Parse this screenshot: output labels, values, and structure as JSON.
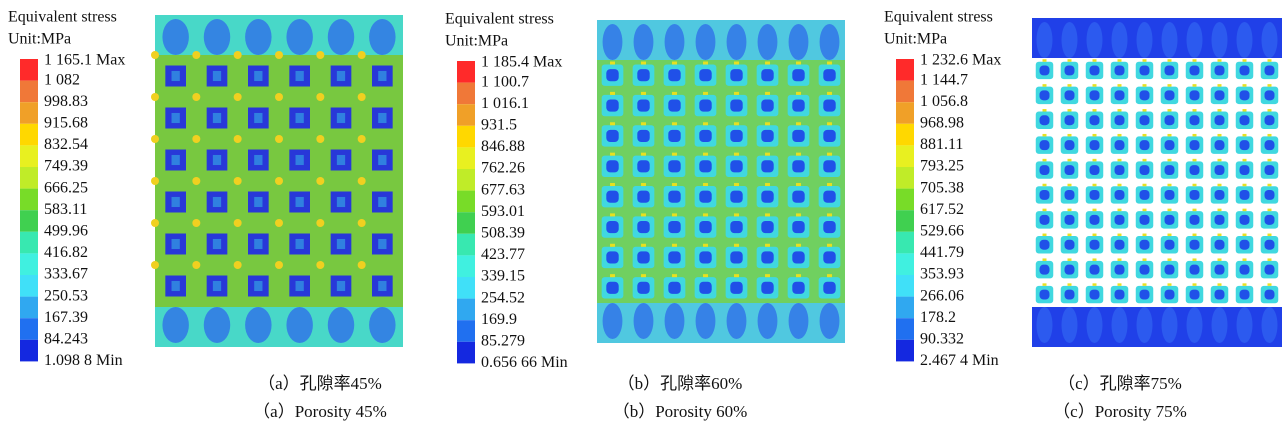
{
  "panels": [
    {
      "legend_title": "Equivalent stress",
      "unit": "Unit:MPa",
      "labels": [
        "1 165.1 Max",
        "1 082",
        "998.83",
        "915.68",
        "832.54",
        "749.39",
        "666.25",
        "583.11",
        "499.96",
        "416.82",
        "333.67",
        "250.53",
        "167.39",
        "84.243",
        "1.098 8 Min"
      ],
      "caption_zh": "（a）孔隙率45%",
      "caption_en": "（a）Porosity 45%"
    },
    {
      "legend_title": "Equivalent stress",
      "unit": "Unit:MPa",
      "labels": [
        "1 185.4 Max",
        "1 100.7",
        "1 016.1",
        "931.5",
        "846.88",
        "762.26",
        "677.63",
        "593.01",
        "508.39",
        "423.77",
        "339.15",
        "254.52",
        "169.9",
        "85.279",
        "0.656 66 Min"
      ],
      "caption_zh": "（b）孔隙率60%",
      "caption_en": "（b）Porosity 60%"
    },
    {
      "legend_title": "Equivalent stress",
      "unit": "Unit:MPa",
      "labels": [
        "1 232.6 Max",
        "1 144.7",
        "1 056.8",
        "968.98",
        "881.11",
        "793.25",
        "705.38",
        "617.52",
        "529.66",
        "441.79",
        "353.93",
        "266.06",
        "178.2",
        "90.332",
        "2.467 4 Min"
      ],
      "caption_zh": "（c）孔隙率75%",
      "caption_en": "（c）Porosity 75%"
    }
  ]
}
